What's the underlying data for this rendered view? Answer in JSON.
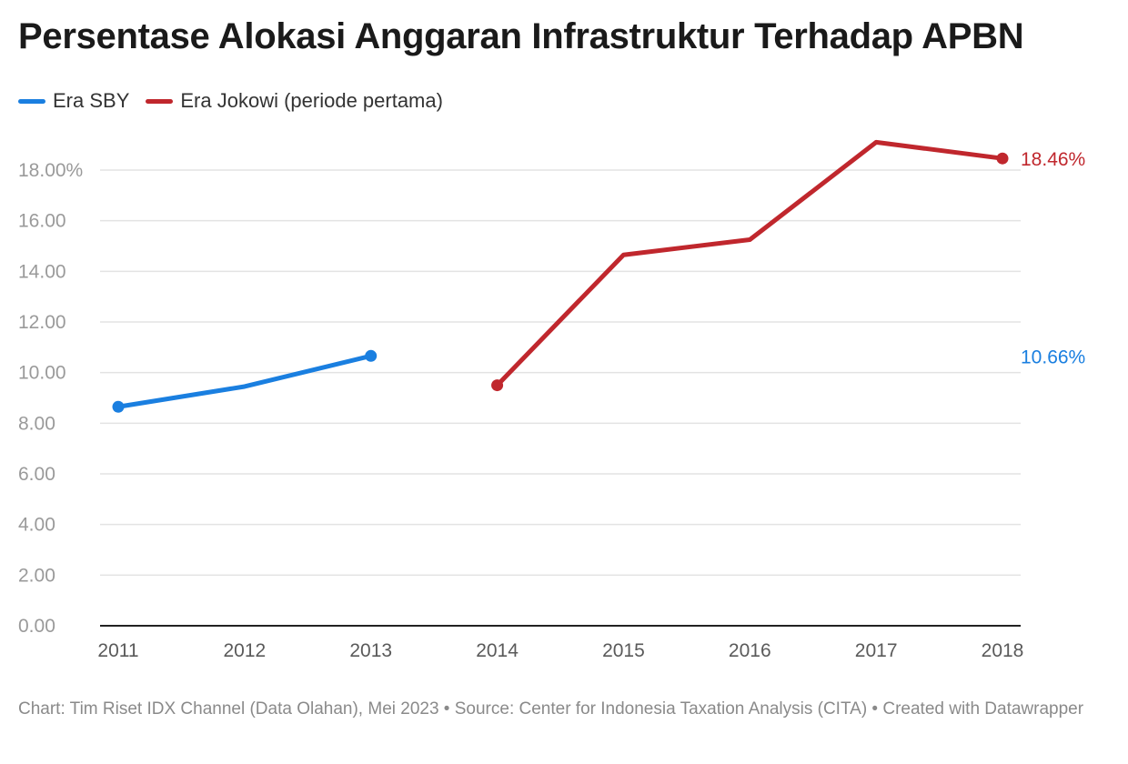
{
  "chart_data": {
    "type": "line",
    "title": "Persentase Alokasi Anggaran Infrastruktur Terhadap APBN",
    "x": [
      "2011",
      "2012",
      "2013",
      "2014",
      "2015",
      "2016",
      "2017",
      "2018"
    ],
    "xlabel": "",
    "ylabel": "",
    "ylim": [
      0,
      18
    ],
    "yticks": [
      0,
      2,
      4,
      6,
      8,
      10,
      12,
      14,
      16,
      18
    ],
    "ytick_labels": [
      "0.00",
      "2.00",
      "4.00",
      "6.00",
      "8.00",
      "10.00",
      "12.00",
      "14.00",
      "16.00",
      "18.00%"
    ],
    "grid": true,
    "legend_position": "top-left",
    "series": [
      {
        "name": "Era SBY",
        "color": "#1a7fe0",
        "values": [
          8.65,
          9.45,
          10.66,
          null,
          null,
          null,
          null,
          null
        ],
        "end_label": "10.66%"
      },
      {
        "name": "Era Jokowi (periode pertama)",
        "color": "#c0272d",
        "values": [
          null,
          null,
          null,
          9.5,
          14.65,
          15.25,
          19.1,
          18.46
        ],
        "end_label": "18.46%"
      }
    ]
  },
  "footer": {
    "text": "Chart: Tim Riset IDX Channel (Data Olahan), Mei 2023 • Source: Center for Indonesia Taxation Analysis (CITA) • Created with Datawrapper"
  }
}
